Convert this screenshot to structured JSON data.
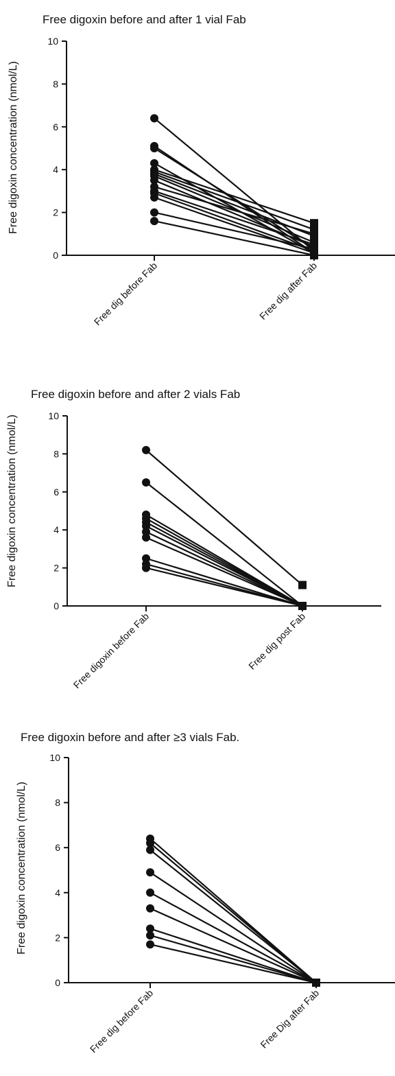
{
  "colors": {
    "line": "#111111",
    "marker": "#111111",
    "background": "#ffffff"
  },
  "chart_data": [
    {
      "type": "line",
      "title": "Free digoxin before and after 1 vial Fab",
      "ylabel": "Free digoxin concentration (nmol/L)",
      "xlabel": "",
      "categories": [
        "Free dig before Fab",
        "Free dig after Fab"
      ],
      "ylim": [
        0,
        10
      ],
      "yticks": [
        "0",
        "2",
        "4",
        "6",
        "8",
        "10"
      ],
      "markers": [
        "circle",
        "square"
      ],
      "series": [
        {
          "values": [
            6.4,
            0.2
          ]
        },
        {
          "values": [
            5.1,
            0.1
          ]
        },
        {
          "values": [
            5.0,
            0.3
          ]
        },
        {
          "values": [
            4.3,
            0.1
          ]
        },
        {
          "values": [
            4.0,
            1.5
          ]
        },
        {
          "values": [
            3.9,
            1.2
          ]
        },
        {
          "values": [
            3.8,
            0.9
          ]
        },
        {
          "values": [
            3.7,
            0.6
          ]
        },
        {
          "values": [
            3.5,
            0.4
          ]
        },
        {
          "values": [
            3.2,
            1.0
          ]
        },
        {
          "values": [
            3.0,
            0.5
          ]
        },
        {
          "values": [
            2.9,
            0.2
          ]
        },
        {
          "values": [
            2.7,
            0.1
          ]
        },
        {
          "values": [
            2.0,
            0.3
          ]
        },
        {
          "values": [
            1.6,
            0.0
          ]
        }
      ]
    },
    {
      "type": "line",
      "title": "Free digoxin before and after 2 vials Fab",
      "ylabel": "Free digoxin concentration (nmol/L)",
      "xlabel": "",
      "categories": [
        "Free digoxin before Fab",
        "Free dig post Fab"
      ],
      "ylim": [
        0,
        10
      ],
      "yticks": [
        "0",
        "2",
        "4",
        "6",
        "8",
        "10"
      ],
      "markers": [
        "circle",
        "square"
      ],
      "series": [
        {
          "values": [
            8.2,
            1.1
          ]
        },
        {
          "values": [
            6.5,
            0.0
          ]
        },
        {
          "values": [
            4.8,
            0.0
          ]
        },
        {
          "values": [
            4.6,
            0.0
          ]
        },
        {
          "values": [
            4.4,
            0.0
          ]
        },
        {
          "values": [
            4.2,
            0.0
          ]
        },
        {
          "values": [
            3.9,
            0.0
          ]
        },
        {
          "values": [
            3.6,
            0.0
          ]
        },
        {
          "values": [
            2.5,
            0.0
          ]
        },
        {
          "values": [
            2.2,
            0.0
          ]
        },
        {
          "values": [
            2.0,
            0.0
          ]
        }
      ]
    },
    {
      "type": "line",
      "title": "Free digoxin before and after ≥3 vials Fab.",
      "ylabel": "Free digoxin concentration (nmol/L)",
      "xlabel": "",
      "categories": [
        "Free dig before Fab",
        "Free Dig after Fab"
      ],
      "ylim": [
        0,
        10
      ],
      "yticks": [
        "0",
        "2",
        "4",
        "6",
        "8",
        "10"
      ],
      "markers": [
        "circle",
        "square"
      ],
      "series": [
        {
          "values": [
            6.4,
            0.0
          ]
        },
        {
          "values": [
            6.2,
            0.0
          ]
        },
        {
          "values": [
            5.9,
            0.0
          ]
        },
        {
          "values": [
            4.9,
            0.0
          ]
        },
        {
          "values": [
            4.0,
            0.0
          ]
        },
        {
          "values": [
            3.3,
            0.0
          ]
        },
        {
          "values": [
            2.4,
            0.0
          ]
        },
        {
          "values": [
            2.1,
            0.0
          ]
        },
        {
          "values": [
            1.7,
            0.0
          ]
        }
      ]
    }
  ]
}
